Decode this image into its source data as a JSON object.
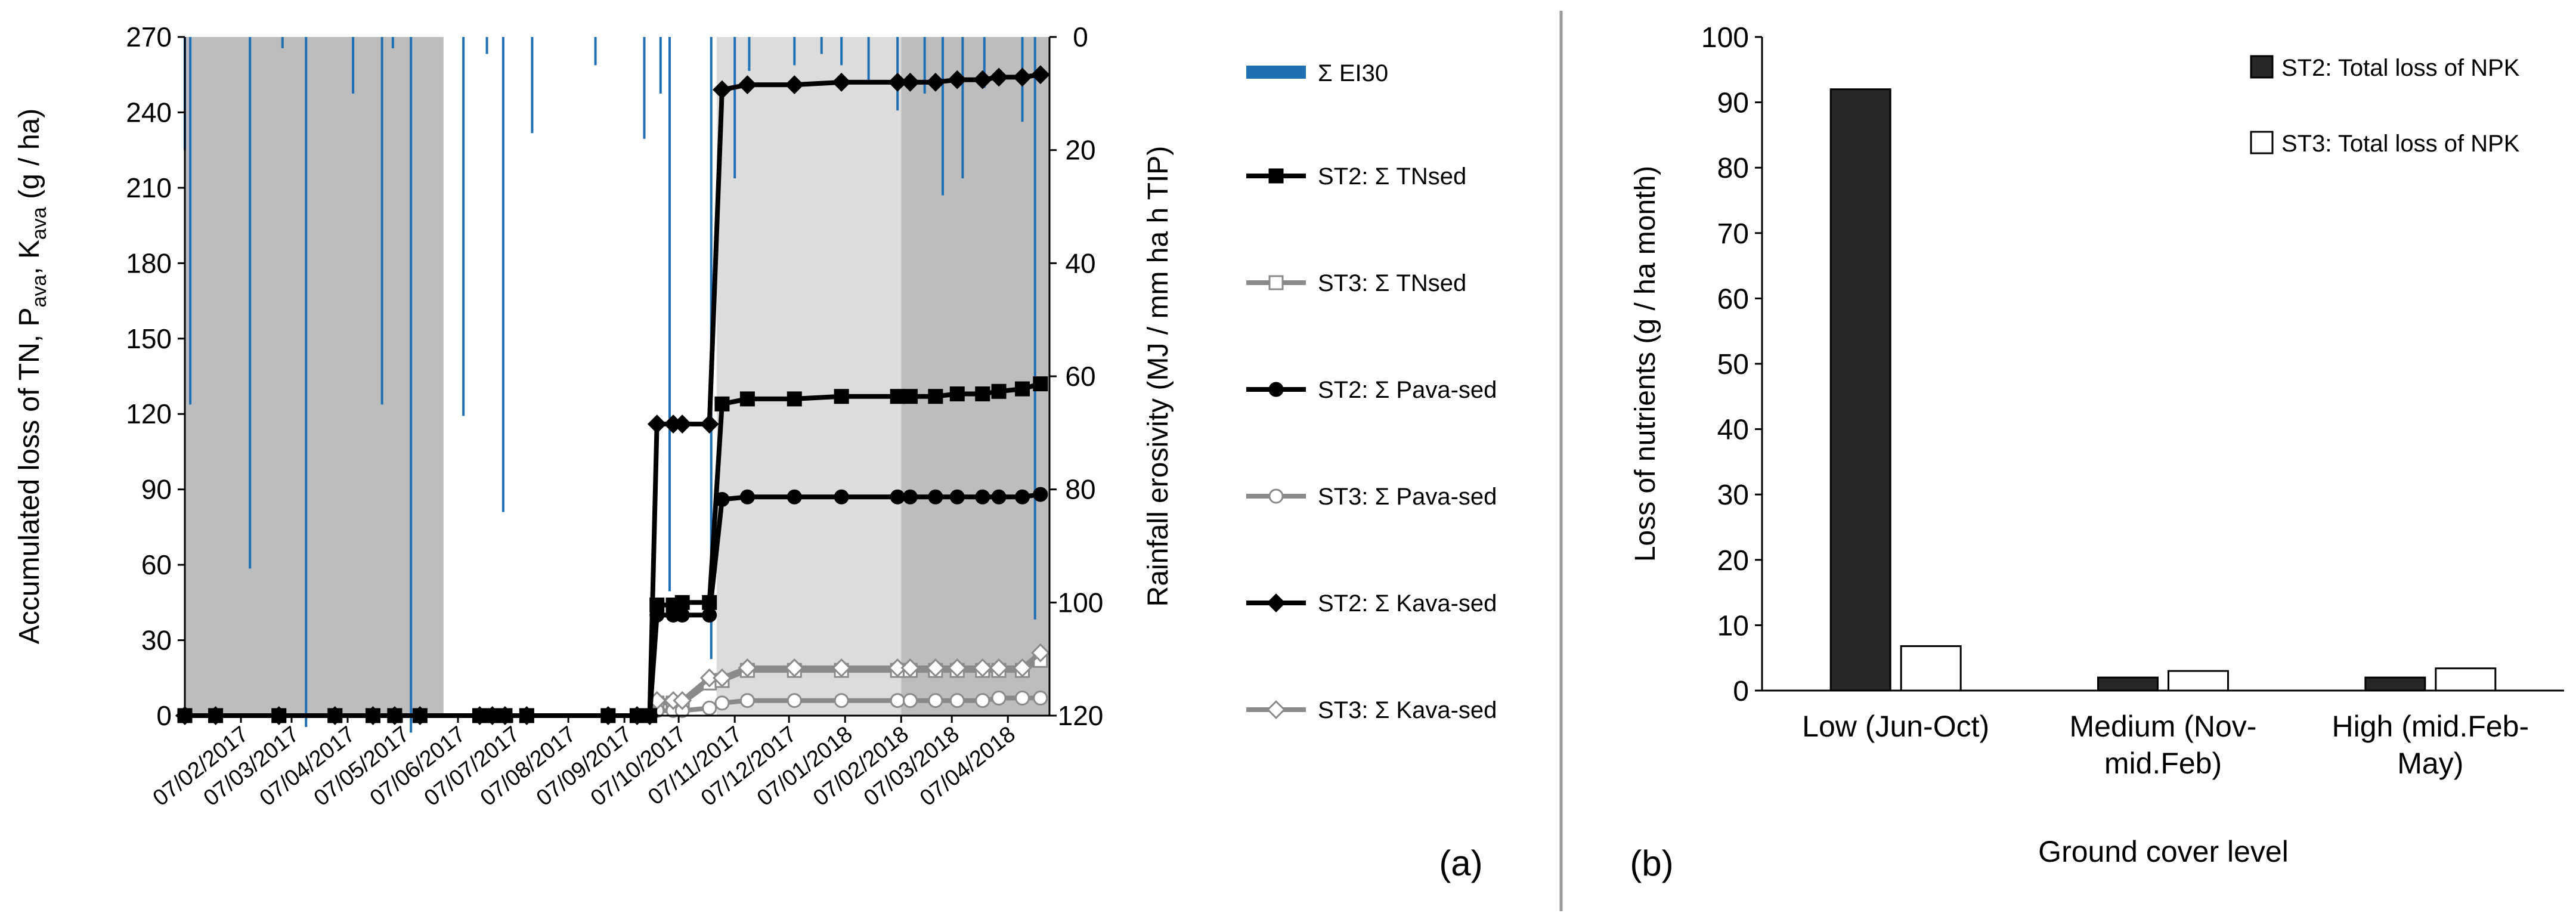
{
  "chart_data": [
    {
      "panel_label": "(a)",
      "type": "line",
      "x_start": "2017-01-07",
      "x_end": "2018-04-30",
      "x_tick_labels": [
        "07/02/2017",
        "07/03/2017",
        "07/04/2017",
        "07/05/2017",
        "07/06/2017",
        "07/07/2017",
        "07/08/2017",
        "07/09/2017",
        "07/10/2017",
        "07/11/2017",
        "07/12/2017",
        "07/01/2018",
        "07/02/2018",
        "07/03/2018",
        "07/04/2018"
      ],
      "x_tick_dates": [
        "2017-02-07",
        "2017-03-07",
        "2017-04-07",
        "2017-05-07",
        "2017-06-07",
        "2017-07-07",
        "2017-08-07",
        "2017-09-07",
        "2017-10-07",
        "2017-11-07",
        "2017-12-07",
        "2018-01-07",
        "2018-02-07",
        "2018-03-07",
        "2018-04-07"
      ],
      "ylabel_parts": [
        "Accumulated loss of TN, P",
        "ava",
        ", K",
        "ava",
        " (g / ha)"
      ],
      "ylim": [
        0,
        270
      ],
      "y_ticks": [
        0,
        30,
        60,
        90,
        120,
        150,
        180,
        210,
        240,
        270
      ],
      "y2label": "Rainfall erosivity (MJ / mm ha h TIP)",
      "y2lim": [
        0,
        120
      ],
      "y2_inverted": true,
      "y2_ticks": [
        0,
        20,
        40,
        60,
        80,
        100,
        120
      ],
      "ground_cover_periods": [
        {
          "start": "2017-01-07",
          "end": "2017-05-30",
          "level": "dark"
        },
        {
          "start": "2017-10-28",
          "end": "2018-02-07",
          "level": "light"
        },
        {
          "start": "2018-02-07",
          "end": "2018-04-30",
          "level": "dark"
        }
      ],
      "rainfall_erosivity": {
        "name": "Σ EI30",
        "color": "#1f6fb5",
        "events": [
          {
            "date": "2017-01-07",
            "value": 20
          },
          {
            "date": "2017-01-10",
            "value": 65
          },
          {
            "date": "2017-02-12",
            "value": 94
          },
          {
            "date": "2017-03-02",
            "value": 2
          },
          {
            "date": "2017-03-15",
            "value": 122
          },
          {
            "date": "2017-04-10",
            "value": 10
          },
          {
            "date": "2017-04-26",
            "value": 65
          },
          {
            "date": "2017-05-02",
            "value": 2
          },
          {
            "date": "2017-05-12",
            "value": 123
          },
          {
            "date": "2017-06-10",
            "value": 67
          },
          {
            "date": "2017-06-23",
            "value": 3
          },
          {
            "date": "2017-07-02",
            "value": 84
          },
          {
            "date": "2017-07-18",
            "value": 17
          },
          {
            "date": "2017-08-22",
            "value": 5
          },
          {
            "date": "2017-09-18",
            "value": 18
          },
          {
            "date": "2017-09-27",
            "value": 10
          },
          {
            "date": "2017-10-02",
            "value": 98
          },
          {
            "date": "2017-10-25",
            "value": 110
          },
          {
            "date": "2017-11-07",
            "value": 25
          },
          {
            "date": "2017-11-15",
            "value": 6
          },
          {
            "date": "2017-12-10",
            "value": 5
          },
          {
            "date": "2017-12-25",
            "value": 3
          },
          {
            "date": "2018-01-05",
            "value": 5
          },
          {
            "date": "2018-01-20",
            "value": 8
          },
          {
            "date": "2018-02-05",
            "value": 13
          },
          {
            "date": "2018-02-20",
            "value": 10
          },
          {
            "date": "2018-03-02",
            "value": 28
          },
          {
            "date": "2018-03-13",
            "value": 25
          },
          {
            "date": "2018-03-25",
            "value": 9
          },
          {
            "date": "2018-04-15",
            "value": 15
          },
          {
            "date": "2018-04-22",
            "value": 103
          }
        ]
      },
      "series": [
        {
          "name": "ST2: Σ TNsed",
          "color": "#000000",
          "marker": "square",
          "filled": true,
          "points": [
            [
              "2017-01-07",
              0
            ],
            [
              "2017-01-24",
              0
            ],
            [
              "2017-02-28",
              0
            ],
            [
              "2017-03-31",
              0
            ],
            [
              "2017-04-21",
              0
            ],
            [
              "2017-05-03",
              0
            ],
            [
              "2017-05-17",
              0
            ],
            [
              "2017-06-19",
              0
            ],
            [
              "2017-06-26",
              0
            ],
            [
              "2017-07-03",
              0
            ],
            [
              "2017-07-15",
              0
            ],
            [
              "2017-08-29",
              0
            ],
            [
              "2017-09-14",
              0
            ],
            [
              "2017-09-21",
              0
            ],
            [
              "2017-09-25",
              44
            ],
            [
              "2017-10-04",
              44
            ],
            [
              "2017-10-09",
              45
            ],
            [
              "2017-10-24",
              45
            ],
            [
              "2017-10-31",
              124
            ],
            [
              "2017-11-14",
              126
            ],
            [
              "2017-12-10",
              126
            ],
            [
              "2018-01-05",
              127
            ],
            [
              "2018-02-05",
              127
            ],
            [
              "2018-02-12",
              127
            ],
            [
              "2018-02-26",
              127
            ],
            [
              "2018-03-10",
              128
            ],
            [
              "2018-03-24",
              128
            ],
            [
              "2018-04-02",
              129
            ],
            [
              "2018-04-15",
              130
            ],
            [
              "2018-04-25",
              132
            ]
          ]
        },
        {
          "name": "ST3: Σ TNsed",
          "color": "#8a8a8a",
          "marker": "square",
          "filled": false,
          "points": [
            [
              "2017-01-07",
              0
            ],
            [
              "2017-01-24",
              0
            ],
            [
              "2017-02-28",
              0
            ],
            [
              "2017-03-31",
              0
            ],
            [
              "2017-04-21",
              0
            ],
            [
              "2017-05-03",
              0
            ],
            [
              "2017-05-17",
              0
            ],
            [
              "2017-06-19",
              0
            ],
            [
              "2017-06-26",
              0
            ],
            [
              "2017-07-03",
              0
            ],
            [
              "2017-07-15",
              0
            ],
            [
              "2017-08-29",
              0
            ],
            [
              "2017-09-14",
              0
            ],
            [
              "2017-09-21",
              0
            ],
            [
              "2017-09-25",
              5
            ],
            [
              "2017-10-04",
              5
            ],
            [
              "2017-10-09",
              5
            ],
            [
              "2017-10-24",
              13
            ],
            [
              "2017-10-31",
              14
            ],
            [
              "2017-11-14",
              18
            ],
            [
              "2017-12-10",
              18
            ],
            [
              "2018-01-05",
              18
            ],
            [
              "2018-02-05",
              18
            ],
            [
              "2018-02-12",
              18
            ],
            [
              "2018-02-26",
              18
            ],
            [
              "2018-03-10",
              18
            ],
            [
              "2018-03-24",
              18
            ],
            [
              "2018-04-02",
              18
            ],
            [
              "2018-04-15",
              18
            ],
            [
              "2018-04-25",
              22
            ]
          ]
        },
        {
          "name": "ST2: Σ Pava-sed",
          "color": "#000000",
          "marker": "circle",
          "filled": true,
          "points": [
            [
              "2017-01-07",
              0
            ],
            [
              "2017-01-24",
              0
            ],
            [
              "2017-02-28",
              0
            ],
            [
              "2017-03-31",
              0
            ],
            [
              "2017-04-21",
              0
            ],
            [
              "2017-05-03",
              0
            ],
            [
              "2017-05-17",
              0
            ],
            [
              "2017-06-19",
              0
            ],
            [
              "2017-06-26",
              0
            ],
            [
              "2017-07-03",
              0
            ],
            [
              "2017-07-15",
              0
            ],
            [
              "2017-08-29",
              0
            ],
            [
              "2017-09-14",
              0
            ],
            [
              "2017-09-21",
              0
            ],
            [
              "2017-09-25",
              40
            ],
            [
              "2017-10-04",
              40
            ],
            [
              "2017-10-09",
              40
            ],
            [
              "2017-10-24",
              40
            ],
            [
              "2017-10-31",
              86
            ],
            [
              "2017-11-14",
              87
            ],
            [
              "2017-12-10",
              87
            ],
            [
              "2018-01-05",
              87
            ],
            [
              "2018-02-05",
              87
            ],
            [
              "2018-02-12",
              87
            ],
            [
              "2018-02-26",
              87
            ],
            [
              "2018-03-10",
              87
            ],
            [
              "2018-03-24",
              87
            ],
            [
              "2018-04-02",
              87
            ],
            [
              "2018-04-15",
              87
            ],
            [
              "2018-04-25",
              88
            ]
          ]
        },
        {
          "name": "ST3: Σ Pava-sed",
          "color": "#8a8a8a",
          "marker": "circle",
          "filled": false,
          "points": [
            [
              "2017-01-07",
              0
            ],
            [
              "2017-01-24",
              0
            ],
            [
              "2017-02-28",
              0
            ],
            [
              "2017-03-31",
              0
            ],
            [
              "2017-04-21",
              0
            ],
            [
              "2017-05-03",
              0
            ],
            [
              "2017-05-17",
              0
            ],
            [
              "2017-06-19",
              0
            ],
            [
              "2017-06-26",
              0
            ],
            [
              "2017-07-03",
              0
            ],
            [
              "2017-07-15",
              0
            ],
            [
              "2017-08-29",
              0
            ],
            [
              "2017-09-14",
              0
            ],
            [
              "2017-09-21",
              0
            ],
            [
              "2017-09-25",
              2
            ],
            [
              "2017-10-04",
              2
            ],
            [
              "2017-10-09",
              2
            ],
            [
              "2017-10-24",
              3
            ],
            [
              "2017-10-31",
              5
            ],
            [
              "2017-11-14",
              6
            ],
            [
              "2017-12-10",
              6
            ],
            [
              "2018-01-05",
              6
            ],
            [
              "2018-02-05",
              6
            ],
            [
              "2018-02-12",
              6
            ],
            [
              "2018-02-26",
              6
            ],
            [
              "2018-03-10",
              6
            ],
            [
              "2018-03-24",
              6
            ],
            [
              "2018-04-02",
              7
            ],
            [
              "2018-04-15",
              7
            ],
            [
              "2018-04-25",
              7
            ]
          ]
        },
        {
          "name": "ST2: Σ Kava-sed",
          "color": "#000000",
          "marker": "diamond",
          "filled": true,
          "points": [
            [
              "2017-01-07",
              0
            ],
            [
              "2017-01-24",
              0
            ],
            [
              "2017-02-28",
              0
            ],
            [
              "2017-03-31",
              0
            ],
            [
              "2017-04-21",
              0
            ],
            [
              "2017-05-03",
              0
            ],
            [
              "2017-05-17",
              0
            ],
            [
              "2017-06-19",
              0
            ],
            [
              "2017-06-26",
              0
            ],
            [
              "2017-07-03",
              0
            ],
            [
              "2017-07-15",
              0
            ],
            [
              "2017-08-29",
              0
            ],
            [
              "2017-09-14",
              0
            ],
            [
              "2017-09-21",
              0
            ],
            [
              "2017-09-25",
              116
            ],
            [
              "2017-10-04",
              116
            ],
            [
              "2017-10-09",
              116
            ],
            [
              "2017-10-24",
              116
            ],
            [
              "2017-10-31",
              249
            ],
            [
              "2017-11-14",
              251
            ],
            [
              "2017-12-10",
              251
            ],
            [
              "2018-01-05",
              252
            ],
            [
              "2018-02-05",
              252
            ],
            [
              "2018-02-12",
              252
            ],
            [
              "2018-02-26",
              252
            ],
            [
              "2018-03-10",
              253
            ],
            [
              "2018-03-24",
              253
            ],
            [
              "2018-04-02",
              254
            ],
            [
              "2018-04-15",
              254
            ],
            [
              "2018-04-25",
              255
            ]
          ]
        },
        {
          "name": "ST3: Σ Kava-sed",
          "color": "#8a8a8a",
          "marker": "diamond",
          "filled": false,
          "points": [
            [
              "2017-01-07",
              0
            ],
            [
              "2017-01-24",
              0
            ],
            [
              "2017-02-28",
              0
            ],
            [
              "2017-03-31",
              0
            ],
            [
              "2017-04-21",
              0
            ],
            [
              "2017-05-03",
              0
            ],
            [
              "2017-05-17",
              0
            ],
            [
              "2017-06-19",
              0
            ],
            [
              "2017-06-26",
              0
            ],
            [
              "2017-07-03",
              0
            ],
            [
              "2017-07-15",
              0
            ],
            [
              "2017-08-29",
              0
            ],
            [
              "2017-09-14",
              0
            ],
            [
              "2017-09-21",
              0
            ],
            [
              "2017-09-25",
              6
            ],
            [
              "2017-10-04",
              6
            ],
            [
              "2017-10-09",
              6
            ],
            [
              "2017-10-24",
              15
            ],
            [
              "2017-10-31",
              15
            ],
            [
              "2017-11-14",
              19
            ],
            [
              "2017-12-10",
              19
            ],
            [
              "2018-01-05",
              19
            ],
            [
              "2018-02-05",
              19
            ],
            [
              "2018-02-12",
              19
            ],
            [
              "2018-02-26",
              19
            ],
            [
              "2018-03-10",
              19
            ],
            [
              "2018-03-24",
              19
            ],
            [
              "2018-04-02",
              19
            ],
            [
              "2018-04-15",
              19
            ],
            [
              "2018-04-25",
              25
            ]
          ]
        }
      ],
      "legend_position": "right"
    },
    {
      "panel_label": "(b)",
      "type": "bar",
      "categories": [
        [
          "Low (Jun-Oct)"
        ],
        [
          "Medium (Nov-",
          "mid.Feb)"
        ],
        [
          "High (mid.Feb-",
          "May)"
        ]
      ],
      "xlabel": "Ground cover level",
      "ylabel": "Loss of nutrients (g / ha month)",
      "ylim": [
        0,
        100
      ],
      "y_ticks": [
        0,
        10,
        20,
        30,
        40,
        50,
        60,
        70,
        80,
        90,
        100
      ],
      "series": [
        {
          "name": "ST2: Total loss of NPK",
          "color": "#262626",
          "filled": true,
          "values": [
            92,
            2,
            2
          ]
        },
        {
          "name": "ST3: Total loss of NPK",
          "color": "#ffffff",
          "filled": false,
          "values": [
            6.8,
            3.0,
            3.4
          ]
        }
      ],
      "legend_position": "top-right"
    }
  ]
}
